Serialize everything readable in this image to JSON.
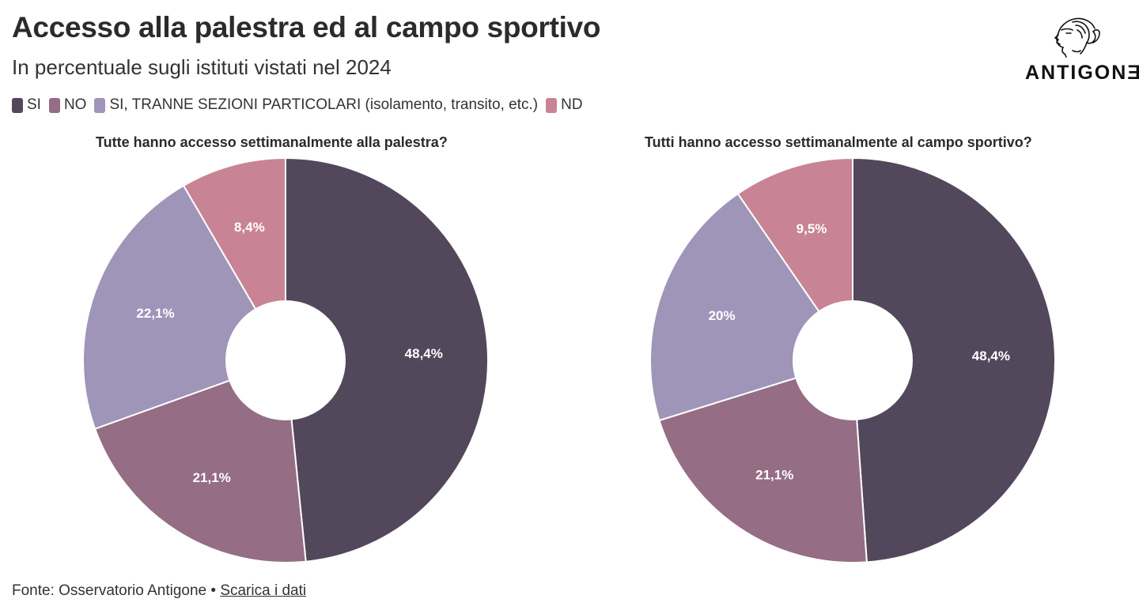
{
  "title": "Accesso alla palestra ed al campo sportivo",
  "subtitle": "In percentuale sugli istituti vistati nel 2024",
  "logo": {
    "text": "ANTIGONƎ",
    "icon": "antigone-head-icon"
  },
  "legend": [
    {
      "label": "SI",
      "color": "#53475b"
    },
    {
      "label": "NO",
      "color": "#956d85"
    },
    {
      "label": "SI, TRANNE SEZIONI PARTICOLARI (isolamento, transito, etc.)",
      "color": "#9f95b9"
    },
    {
      "label": "ND",
      "color": "#c88494"
    }
  ],
  "chart_data": [
    {
      "type": "pie",
      "donut": true,
      "title": "Tutte hanno accesso settimanalmente alla palestra?",
      "categories": [
        "SI",
        "NO",
        "SI, TRANNE SEZIONI PARTICOLARI (isolamento, transito, etc.)",
        "ND"
      ],
      "values": [
        48.4,
        21.1,
        22.1,
        8.4
      ],
      "labels": [
        "48,4%",
        "21,1%",
        "22,1%",
        "8,4%"
      ],
      "colors": [
        "#53475b",
        "#956d85",
        "#9f95b9",
        "#c88494"
      ]
    },
    {
      "type": "pie",
      "donut": true,
      "title": "Tutti hanno accesso settimanalmente al campo sportivo?",
      "categories": [
        "SI",
        "NO",
        "SI, TRANNE SEZIONI PARTICOLARI (isolamento, transito, etc.)",
        "ND"
      ],
      "values": [
        48.4,
        21.1,
        20,
        9.5
      ],
      "labels": [
        "48,4%",
        "21,1%",
        "20%",
        "9,5%"
      ],
      "colors": [
        "#53475b",
        "#956d85",
        "#9f95b9",
        "#c88494"
      ]
    }
  ],
  "footer": {
    "source": "Fonte: Osservatorio Antigone",
    "separator": "•",
    "download_label": "Scarica i dati"
  }
}
